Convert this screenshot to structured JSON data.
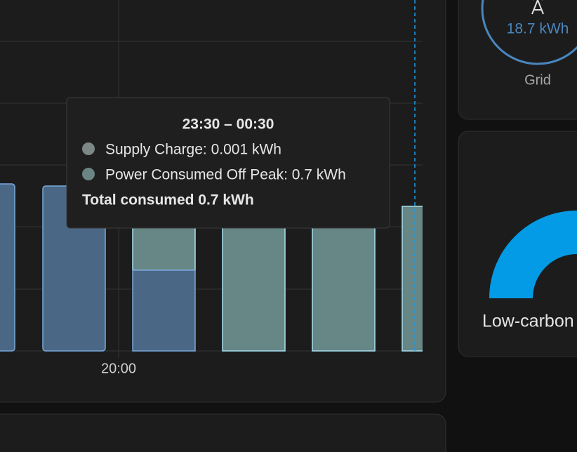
{
  "chart_panel": {
    "x_label": "20:00"
  },
  "tooltip": {
    "title": "23:30 – 00:30",
    "rows": [
      "Supply Charge: 0.001 kWh",
      "Power Consumed Off Peak: 0.7 kWh"
    ],
    "total": "Total consumed 0.7 kWh"
  },
  "grid_card": {
    "value": "18.7 kWh",
    "label": "Grid"
  },
  "gauge_card": {
    "label": "Low-carbon"
  }
}
